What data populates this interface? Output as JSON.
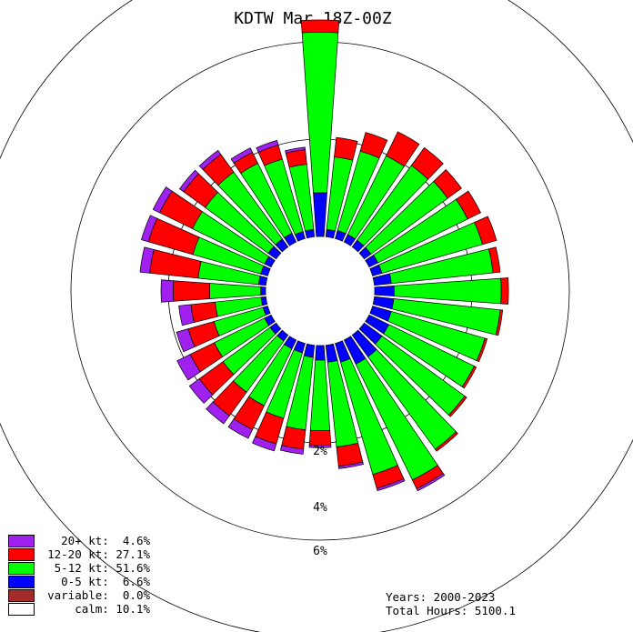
{
  "chart_data": {
    "type": "windrose",
    "title": "KDTW Mar 18Z-00Z",
    "radial_axis": {
      "unit": "%",
      "rings": [
        2,
        4,
        6
      ],
      "ring_labels": [
        "2%",
        "4%",
        "6%"
      ]
    },
    "directions_deg": [
      0,
      10,
      20,
      30,
      40,
      50,
      60,
      70,
      80,
      90,
      100,
      110,
      120,
      130,
      140,
      150,
      160,
      170,
      180,
      190,
      200,
      210,
      220,
      230,
      240,
      250,
      260,
      270,
      280,
      290,
      300,
      310,
      320,
      330,
      340,
      350
    ],
    "series": [
      {
        "name": "0-5 kt",
        "color": "#0000ff",
        "values": [
          0.9,
          0.15,
          0.17,
          0.17,
          0.17,
          0.17,
          0.2,
          0.2,
          0.35,
          0.4,
          0.4,
          0.4,
          0.45,
          0.45,
          0.55,
          0.55,
          0.4,
          0.35,
          0.3,
          0.25,
          0.2,
          0.2,
          0.15,
          0.15,
          0.15,
          0.1,
          0.1,
          0.1,
          0.15,
          0.15,
          0.15,
          0.2,
          0.2,
          0.2,
          0.15,
          0.15
        ]
      },
      {
        "name": "5-12 kt",
        "color": "#00ff00",
        "values": [
          3.3,
          1.5,
          1.7,
          1.8,
          1.9,
          1.95,
          2.05,
          2.15,
          2.1,
          2.2,
          2.2,
          2.0,
          1.95,
          2.1,
          2.35,
          2.65,
          2.4,
          1.75,
          1.45,
          1.5,
          1.4,
          1.3,
          1.3,
          1.2,
          1.15,
          1.05,
          0.95,
          1.05,
          1.25,
          1.45,
          1.65,
          1.6,
          1.7,
          1.6,
          1.55,
          1.35
        ]
      },
      {
        "name": "12-20 kt",
        "color": "#ff0000",
        "values": [
          0.25,
          0.4,
          0.4,
          0.55,
          0.45,
          0.35,
          0.3,
          0.3,
          0.15,
          0.15,
          0.05,
          0.05,
          0.05,
          0.05,
          0.05,
          0.2,
          0.3,
          0.4,
          0.3,
          0.4,
          0.55,
          0.55,
          0.6,
          0.6,
          0.55,
          0.55,
          0.5,
          0.75,
          1.0,
          0.95,
          0.75,
          0.55,
          0.45,
          0.25,
          0.3,
          0.3
        ]
      },
      {
        "name": "20+ kt",
        "color": "#a020f0",
        "values": [
          0,
          0,
          0,
          0,
          0,
          0,
          0,
          0,
          0,
          0,
          0,
          0,
          0,
          0,
          0,
          0.05,
          0.05,
          0.05,
          0.05,
          0.1,
          0.15,
          0.2,
          0.2,
          0.25,
          0.3,
          0.25,
          0.25,
          0.25,
          0.2,
          0.15,
          0.15,
          0.1,
          0.1,
          0.1,
          0.1,
          0.05
        ]
      }
    ],
    "legend": [
      {
        "label": "20+ kt:  4.6%",
        "color": "#a020f0"
      },
      {
        "label": "12-20 kt: 27.1%",
        "color": "#ff0000"
      },
      {
        "label": "5-12 kt: 51.6%",
        "color": "#00ff00"
      },
      {
        "label": "0-5 kt:  6.6%",
        "color": "#0000ff"
      },
      {
        "label": "variable:  0.0%",
        "color": "#a52a2a"
      },
      {
        "label": "calm: 10.1%",
        "color": "#ffffff"
      }
    ],
    "footer": {
      "years": "Years: 2000-2023",
      "total_hours": "Total Hours: 5100.1"
    }
  }
}
